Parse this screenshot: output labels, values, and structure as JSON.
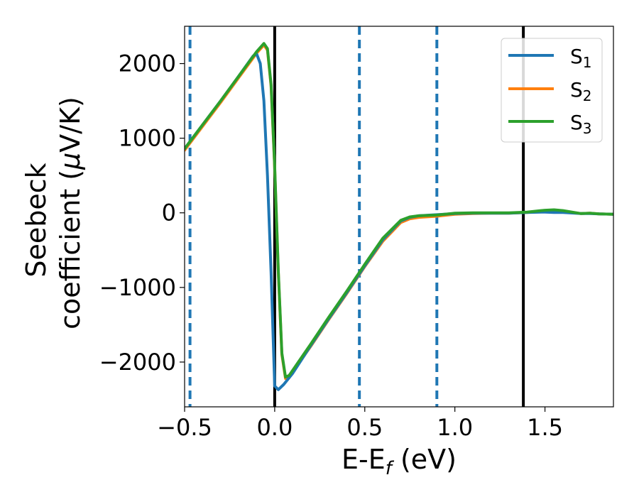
{
  "chart_data": {
    "type": "line",
    "xlabel": {
      "main": "E-E",
      "sub": "f",
      "unit": " (eV)"
    },
    "ylabel": {
      "line1": "Seebeck",
      "line2_prefix": "coefficient  (",
      "line2_mu": "μ",
      "line2_suffix": "V/K)"
    },
    "xlim": [
      -0.5,
      1.88
    ],
    "ylim": [
      -2600,
      2500
    ],
    "x_ticks": [
      -0.5,
      0.0,
      0.5,
      1.0,
      1.5
    ],
    "x_tick_labels": [
      "−0.5",
      "0.0",
      "0.5",
      "1.0",
      "1.5"
    ],
    "y_ticks": [
      2000,
      1000,
      0,
      -1000,
      -2000
    ],
    "y_tick_labels": [
      "2000",
      "1000",
      "0",
      "−1000",
      "−2000"
    ],
    "grid": false,
    "legend_position": "top-right",
    "vlines_solid": [
      0.0,
      1.38
    ],
    "vlines_dashed": [
      -0.47,
      0.47,
      0.9
    ],
    "colors": {
      "S1": "#1f77b4",
      "S2": "#ff7f0e",
      "S3": "#2ca02c",
      "solid_vline": "#000000",
      "dashed_vline": "#1f77b4"
    },
    "series": [
      {
        "name": "S",
        "subscript": "1",
        "color": "#1f77b4",
        "x": [
          -0.5,
          -0.4,
          -0.3,
          -0.2,
          -0.12,
          -0.1,
          -0.08,
          -0.06,
          -0.04,
          -0.02,
          0.0,
          0.02,
          0.05,
          0.1,
          0.2,
          0.3,
          0.4,
          0.5,
          0.6,
          0.7,
          0.75,
          0.8,
          0.9,
          1.0,
          1.1,
          1.2,
          1.3,
          1.4,
          1.5,
          1.55,
          1.6,
          1.7,
          1.75,
          1.8,
          1.88
        ],
        "values": [
          860,
          1180,
          1500,
          1830,
          2100,
          2130,
          2000,
          1500,
          500,
          -800,
          -2320,
          -2370,
          -2300,
          -2150,
          -1780,
          -1420,
          -1070,
          -710,
          -360,
          -110,
          -60,
          -40,
          -25,
          -10,
          -5,
          -5,
          -5,
          5,
          10,
          5,
          5,
          -10,
          -10,
          -15,
          -20
        ]
      },
      {
        "name": "S",
        "subscript": "2",
        "color": "#ff7f0e",
        "x": [
          -0.5,
          -0.4,
          -0.3,
          -0.2,
          -0.1,
          -0.06,
          -0.04,
          -0.02,
          0.0,
          0.02,
          0.04,
          0.06,
          0.08,
          0.1,
          0.2,
          0.3,
          0.4,
          0.5,
          0.6,
          0.7,
          0.75,
          0.8,
          0.9,
          1.0,
          1.1,
          1.2,
          1.3,
          1.4,
          1.5,
          1.55,
          1.6,
          1.7,
          1.75,
          1.8,
          1.88
        ],
        "values": [
          840,
          1160,
          1480,
          1810,
          2140,
          2250,
          2180,
          1700,
          600,
          -800,
          -1900,
          -2220,
          -2200,
          -2130,
          -1790,
          -1430,
          -1080,
          -720,
          -380,
          -130,
          -80,
          -60,
          -45,
          -20,
          -10,
          -5,
          -5,
          5,
          30,
          35,
          25,
          -10,
          -5,
          -15,
          -20
        ]
      },
      {
        "name": "S",
        "subscript": "3",
        "color": "#2ca02c",
        "x": [
          -0.5,
          -0.4,
          -0.3,
          -0.2,
          -0.1,
          -0.06,
          -0.04,
          -0.02,
          0.0,
          0.02,
          0.04,
          0.06,
          0.08,
          0.1,
          0.2,
          0.3,
          0.4,
          0.5,
          0.6,
          0.7,
          0.75,
          0.8,
          0.9,
          1.0,
          1.1,
          1.2,
          1.3,
          1.4,
          1.5,
          1.55,
          1.6,
          1.7,
          1.75,
          1.8,
          1.88
        ],
        "values": [
          860,
          1180,
          1500,
          1830,
          2160,
          2270,
          2200,
          1720,
          620,
          -780,
          -1880,
          -2200,
          -2180,
          -2110,
          -1760,
          -1400,
          -1050,
          -690,
          -340,
          -100,
          -55,
          -40,
          -30,
          -5,
          0,
          0,
          0,
          10,
          35,
          40,
          30,
          -10,
          -5,
          -15,
          -20
        ]
      }
    ]
  }
}
